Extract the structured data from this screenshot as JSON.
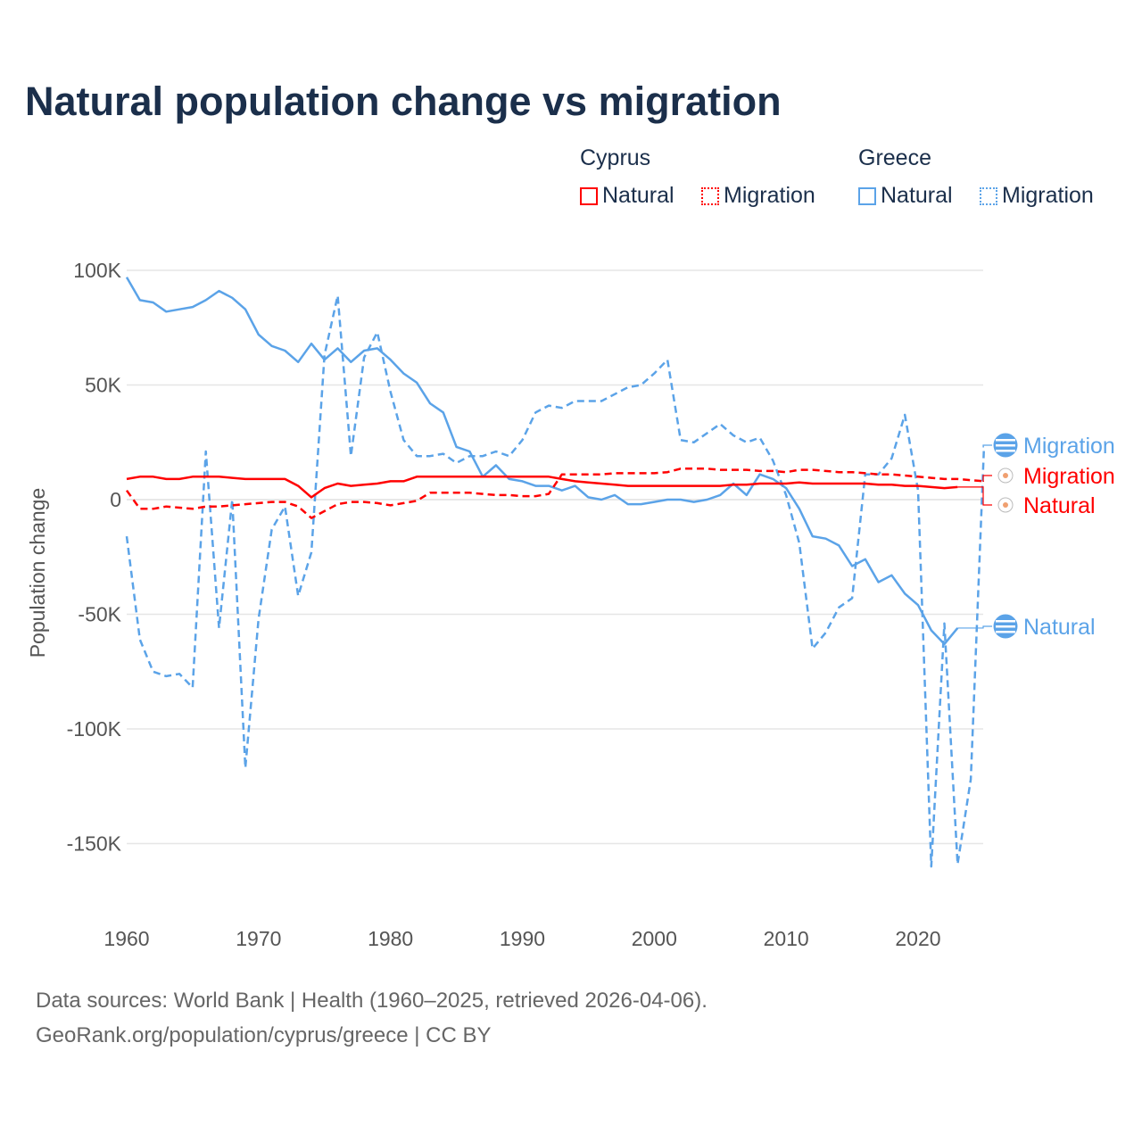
{
  "title": "Natural population change vs migration",
  "legend": {
    "groups": [
      {
        "name": "Cyprus",
        "items": [
          "Natural",
          "Migration"
        ],
        "color": "#ff0000"
      },
      {
        "name": "Greece",
        "items": [
          "Natural",
          "Migration"
        ],
        "color": "#5ba3e8"
      }
    ]
  },
  "footer": {
    "line1": "Data sources: World Bank | Health (1960–2025, retrieved 2026-04-06).",
    "line2": "GeoRank.org/population/cyprus/greece | CC BY"
  },
  "end_labels": {
    "greece_migration": "Migration",
    "cyprus_migration": "Migration",
    "cyprus_natural": "Natural",
    "greece_natural": "Natural"
  },
  "chart_data": {
    "type": "line",
    "title": "Natural population change vs migration",
    "xlabel": "",
    "ylabel": "Population change",
    "xlim": [
      1960,
      2025
    ],
    "ylim": [
      -165000,
      105000
    ],
    "x_ticks": [
      1960,
      1970,
      1980,
      1990,
      2000,
      2010,
      2020
    ],
    "x_tick_labels": [
      "1960",
      "1970",
      "1980",
      "1990",
      "2000",
      "2010",
      "2020"
    ],
    "y_ticks": [
      100000,
      50000,
      0,
      -50000,
      -100000,
      -150000
    ],
    "y_tick_labels": [
      "100K",
      "50K",
      "0",
      "-50K",
      "-100K",
      "-150K"
    ],
    "grid": true,
    "legend_position": "top-right",
    "series": [
      {
        "name": "Cyprus Natural",
        "country": "Cyprus",
        "kind": "Natural",
        "color": "#ff0000",
        "dash": "solid",
        "start_year": 1960,
        "values_thousands": [
          9,
          10,
          10,
          9,
          9,
          10,
          10,
          10,
          9.5,
          9,
          9,
          9,
          9,
          6,
          1,
          5,
          7,
          6,
          6.5,
          7,
          8,
          8,
          10,
          10,
          10,
          10,
          10,
          10,
          10,
          10,
          10,
          10,
          10,
          9,
          8,
          7.5,
          7,
          6.5,
          6,
          6,
          6,
          6,
          6,
          6,
          6,
          6,
          6.5,
          6.5,
          7,
          7,
          7,
          7.5,
          7,
          7,
          7,
          7,
          7,
          6.5,
          6.5,
          6,
          6,
          5.5,
          5,
          5.5
        ]
      },
      {
        "name": "Cyprus Migration",
        "country": "Cyprus",
        "kind": "Migration",
        "color": "#ff0000",
        "dash": "dashed",
        "start_year": 1960,
        "values_thousands": [
          4,
          -4,
          -4,
          -3,
          -3.5,
          -4,
          -3,
          -3,
          -2.5,
          -2,
          -1.5,
          -1,
          -1,
          -3,
          -8,
          -5,
          -2,
          -1,
          -1,
          -1.5,
          -2.5,
          -1.5,
          -0.5,
          3,
          3,
          3,
          3,
          2.5,
          2,
          2,
          1.5,
          1.5,
          2.5,
          11,
          11,
          11,
          11,
          11.5,
          11.5,
          11.5,
          11.5,
          12,
          13.5,
          13.5,
          13.5,
          13,
          13,
          13,
          12.5,
          12.5,
          12,
          13,
          13,
          12.5,
          12,
          12,
          11.5,
          11,
          11,
          10.5,
          10,
          9.5,
          9,
          9,
          8.5,
          8
        ]
      },
      {
        "name": "Greece Natural",
        "country": "Greece",
        "kind": "Natural",
        "color": "#5ba3e8",
        "dash": "solid",
        "start_year": 1960,
        "values_thousands": [
          97,
          87,
          86,
          82,
          83,
          84,
          87,
          91,
          88,
          83,
          72,
          67,
          65,
          60,
          68,
          61,
          66,
          60,
          65,
          66,
          61,
          55,
          51,
          42,
          38,
          23,
          21,
          10,
          15,
          9,
          8,
          6,
          6,
          4,
          6,
          1,
          0,
          2,
          -2,
          -2,
          -1,
          0,
          0,
          -1,
          0,
          2,
          7,
          2,
          11,
          9,
          5,
          -4,
          -16,
          -17,
          -20,
          -29,
          -26,
          -36,
          -33,
          -41,
          -46,
          -57,
          -63,
          -56
        ]
      },
      {
        "name": "Greece Migration",
        "country": "Greece",
        "kind": "Migration",
        "color": "#5ba3e8",
        "dash": "dashed",
        "start_year": 1960,
        "values_thousands": [
          -16,
          -61,
          -75,
          -77,
          -76,
          -82,
          21,
          -56,
          0,
          -117,
          -52,
          -13,
          -3,
          -42,
          -23,
          63,
          89,
          19,
          62,
          73,
          47,
          26,
          19,
          19,
          20,
          16,
          19,
          19,
          21,
          19,
          26,
          38,
          41,
          40,
          43,
          43,
          43,
          46,
          49,
          50,
          55,
          61,
          26,
          25,
          29,
          33,
          28,
          25,
          27,
          17,
          2,
          -19,
          -65,
          -58,
          -47,
          -43,
          11,
          11,
          18,
          37,
          4,
          -160,
          -54,
          -159,
          -122,
          23
        ]
      }
    ]
  }
}
